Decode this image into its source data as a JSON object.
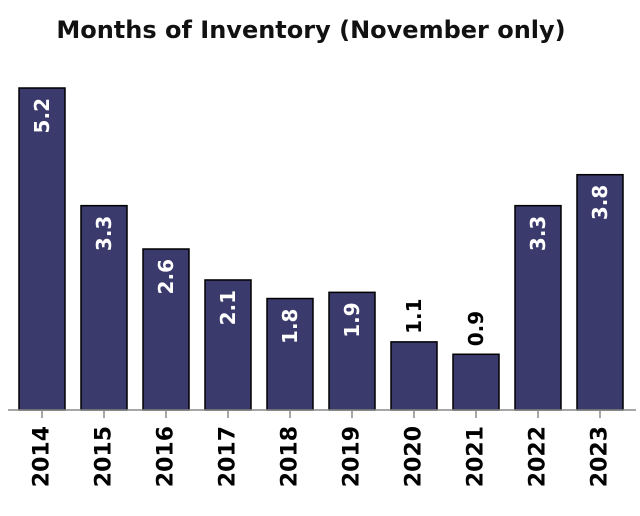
{
  "chart_data": {
    "type": "bar",
    "title": "Months of Inventory (November only)",
    "categories": [
      "2014",
      "2015",
      "2016",
      "2017",
      "2018",
      "2019",
      "2020",
      "2021",
      "2022",
      "2023"
    ],
    "values": [
      5.2,
      3.3,
      2.6,
      2.1,
      1.8,
      1.9,
      1.1,
      0.9,
      3.3,
      3.8
    ],
    "data_labels": [
      "5.2",
      "3.3",
      "2.6",
      "2.1",
      "1.8",
      "1.9",
      "1.1",
      "0.9",
      "3.3",
      "3.8"
    ],
    "xlabel": "",
    "ylabel": "",
    "ylim": [
      0,
      5.2
    ],
    "grid": false,
    "legend": "none",
    "bar_color": "#3b3a6c",
    "label_inside_color": "#ffffff",
    "label_outside_color": "#000000"
  }
}
